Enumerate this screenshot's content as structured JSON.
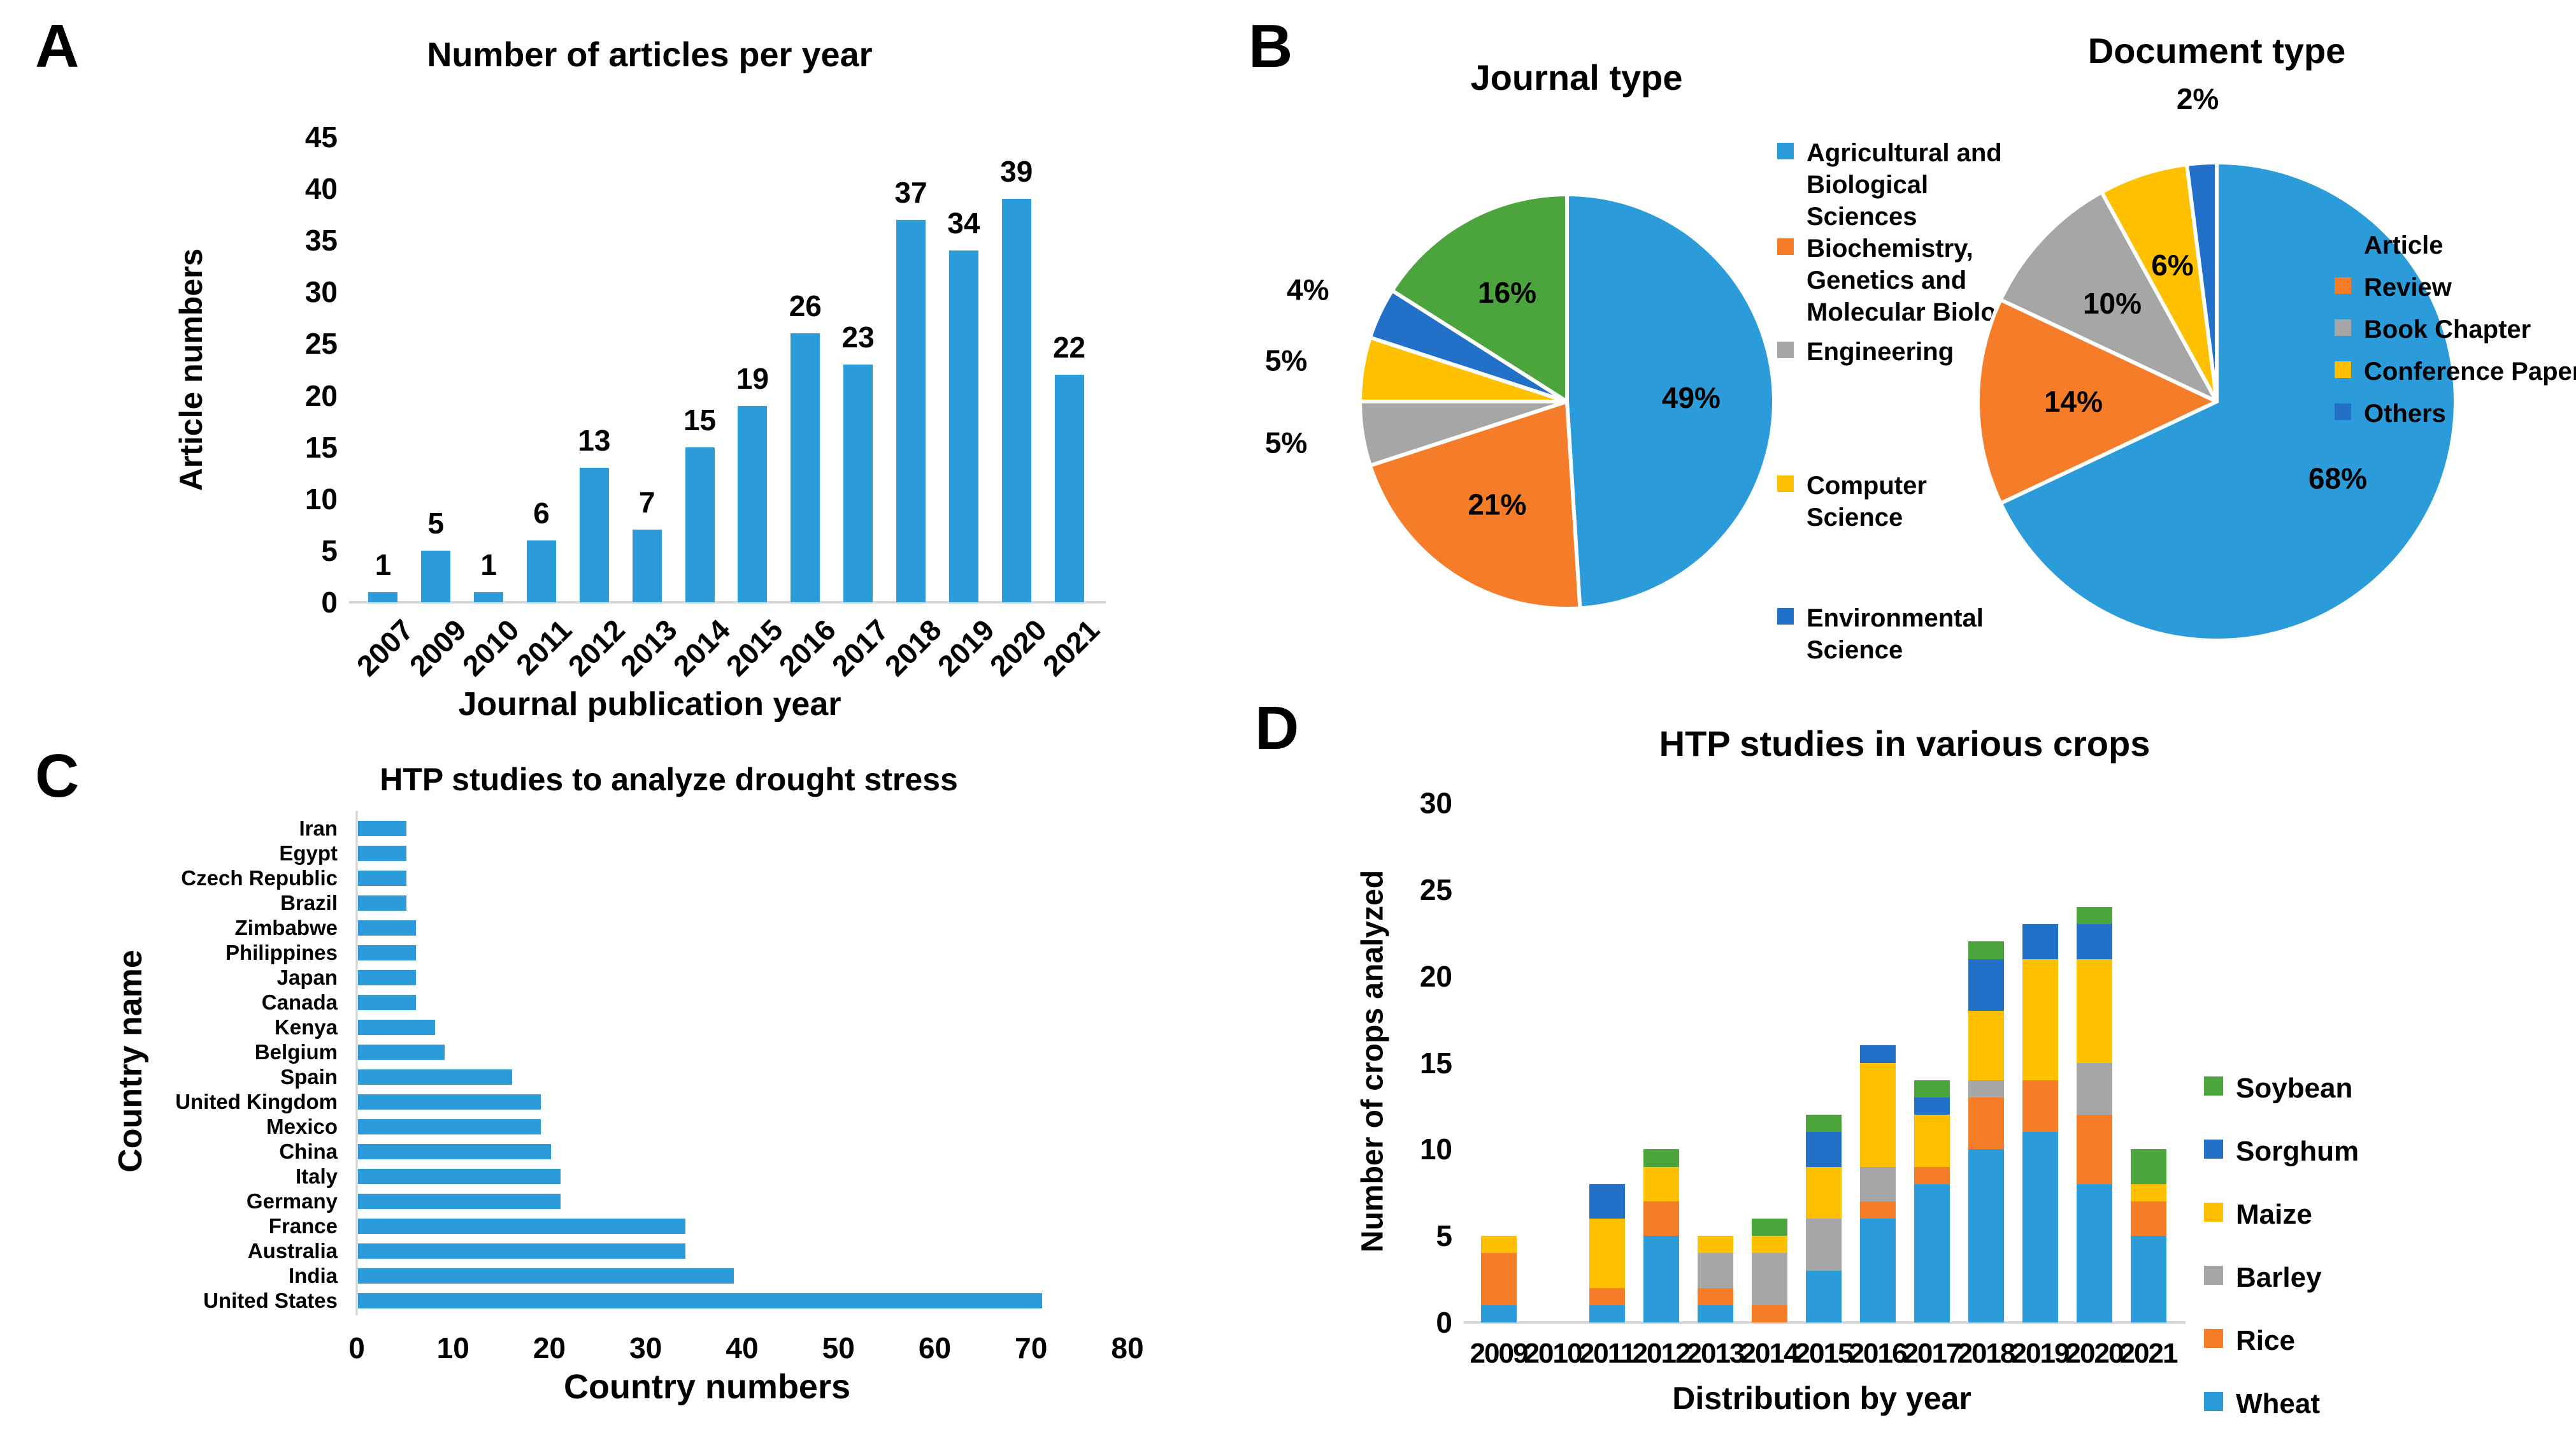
{
  "figure": {
    "background": "#ffffff",
    "panels": [
      {
        "letter": "A"
      },
      {
        "letter": "B"
      },
      {
        "letter": "C"
      },
      {
        "letter": "D"
      }
    ]
  },
  "colors": {
    "light_blue": "#2B9CD9",
    "orange": "#F57C28",
    "gray": "#A6A6A6",
    "yellow": "#FFC000",
    "dark_blue": "#2270C8",
    "green": "#4BA53C",
    "axis_line": "#D6D6D6",
    "text": "#000000"
  },
  "chart_data": [
    {
      "id": "articles_per_year",
      "type": "bar",
      "title": "Number of articles per year",
      "xlabel": "Journal publication year",
      "ylabel": "Article numbers",
      "categories": [
        "2007",
        "2009",
        "2010",
        "2011",
        "2012",
        "2013",
        "2014",
        "2015",
        "2016",
        "2017",
        "2018",
        "2019",
        "2020",
        "2021"
      ],
      "values": [
        1,
        5,
        1,
        6,
        13,
        7,
        15,
        19,
        26,
        23,
        37,
        34,
        39,
        22
      ],
      "ylim": [
        0,
        45
      ],
      "yticks": [
        0,
        5,
        10,
        15,
        20,
        25,
        30,
        35,
        40,
        45
      ],
      "bar_color": "#2B9CD9",
      "data_labels": true,
      "grid": false
    },
    {
      "id": "journal_type",
      "type": "pie",
      "title": "Journal type",
      "slices": [
        {
          "label": "Agricultural and Biological Sciences",
          "percent": 49,
          "color": "#2B9CD9"
        },
        {
          "label": "Biochemistry, Genetics and Molecular Biology",
          "percent": 21,
          "color": "#F57C28"
        },
        {
          "label": "Engineering",
          "percent": 5,
          "color": "#A6A6A6"
        },
        {
          "label": "Computer Science",
          "percent": 5,
          "color": "#FFC000"
        },
        {
          "label": "Environmental Science",
          "percent": 4,
          "color": "#2270C8"
        },
        {
          "label": "",
          "percent": 16,
          "color": "#4BA53C"
        }
      ],
      "legend": [
        {
          "label": "Agricultural and Biological Sciences",
          "color": "#2B9CD9"
        },
        {
          "label": "Biochemistry, Genetics and Molecular Biology",
          "color": "#F57C28"
        },
        {
          "label": "Engineering",
          "color": "#A6A6A6"
        },
        {
          "label": "Computer Science",
          "color": "#FFC000"
        },
        {
          "label": "Environmental Science",
          "color": "#2270C8"
        }
      ],
      "legend_position": "right"
    },
    {
      "id": "document_type",
      "type": "pie",
      "title": "Document type",
      "slices": [
        {
          "label": "Article",
          "percent": 68,
          "color": "#2B9CD9"
        },
        {
          "label": "Review",
          "percent": 14,
          "color": "#F57C28"
        },
        {
          "label": "Book Chapter",
          "percent": 10,
          "color": "#A6A6A6"
        },
        {
          "label": "Conference Paper",
          "percent": 6,
          "color": "#FFC000"
        },
        {
          "label": "Others",
          "percent": 2,
          "color": "#2270C8"
        }
      ],
      "legend": [
        {
          "label": "Article",
          "color": "#2B9CD9"
        },
        {
          "label": "Review",
          "color": "#F57C28"
        },
        {
          "label": "Book Chapter",
          "color": "#A6A6A6"
        },
        {
          "label": "Conference Paper",
          "color": "#FFC000"
        },
        {
          "label": "Others",
          "color": "#2270C8"
        }
      ],
      "legend_position": "right"
    },
    {
      "id": "htp_drought_by_country",
      "type": "bar-horizontal",
      "title": "HTP studies to analyze drought stress",
      "xlabel": "Country numbers",
      "ylabel": "Country name",
      "categories": [
        "Iran",
        "Egypt",
        "Czech Republic",
        "Brazil",
        "Zimbabwe",
        "Philippines",
        "Japan",
        "Canada",
        "Kenya",
        "Belgium",
        "Spain",
        "United Kingdom",
        "Mexico",
        "China",
        "Italy",
        "Germany",
        "France",
        "Australia",
        "India",
        "United States"
      ],
      "values": [
        5,
        5,
        5,
        5,
        6,
        6,
        6,
        6,
        8,
        9,
        16,
        19,
        19,
        20,
        21,
        21,
        34,
        34,
        39,
        71
      ],
      "xlim": [
        0,
        80
      ],
      "xticks": [
        0,
        10,
        20,
        30,
        40,
        50,
        60,
        70,
        80
      ],
      "bar_color": "#2B9CD9",
      "grid": false
    },
    {
      "id": "htp_studies_in_crops",
      "type": "stacked-bar",
      "title": "HTP studies in various crops",
      "xlabel": "Distribution by year",
      "ylabel": "Number of crops analyzed",
      "categories": [
        "2009",
        "2010",
        "2011",
        "2012",
        "2013",
        "2014",
        "2015",
        "2016",
        "2017",
        "2018",
        "2019",
        "2020",
        "2021"
      ],
      "series": [
        {
          "name": "Wheat",
          "color": "#2B9CD9",
          "values": [
            1,
            0,
            1,
            5,
            1,
            0,
            3,
            6,
            8,
            10,
            11,
            8,
            5
          ]
        },
        {
          "name": "Rice",
          "color": "#F57C28",
          "values": [
            3,
            0,
            1,
            2,
            1,
            1,
            0,
            1,
            1,
            3,
            3,
            4,
            2
          ]
        },
        {
          "name": "Barley",
          "color": "#A6A6A6",
          "values": [
            0,
            0,
            0,
            0,
            2,
            3,
            3,
            2,
            0,
            1,
            0,
            3,
            0
          ]
        },
        {
          "name": "Maize",
          "color": "#FFC000",
          "values": [
            1,
            0,
            4,
            2,
            1,
            1,
            3,
            6,
            3,
            4,
            7,
            6,
            1
          ]
        },
        {
          "name": "Sorghum",
          "color": "#2270C8",
          "values": [
            0,
            0,
            2,
            0,
            0,
            0,
            2,
            1,
            1,
            3,
            2,
            2,
            0
          ]
        },
        {
          "name": "Soybean",
          "color": "#4BA53C",
          "values": [
            0,
            0,
            0,
            1,
            0,
            1,
            1,
            0,
            1,
            1,
            0,
            1,
            2
          ]
        }
      ],
      "ylim": [
        0,
        30
      ],
      "yticks": [
        0,
        5,
        10,
        15,
        20,
        25,
        30
      ],
      "legend_order": [
        "Soybean",
        "Sorghum",
        "Maize",
        "Barley",
        "Rice",
        "Wheat"
      ],
      "legend_position": "right",
      "grid": false
    }
  ]
}
